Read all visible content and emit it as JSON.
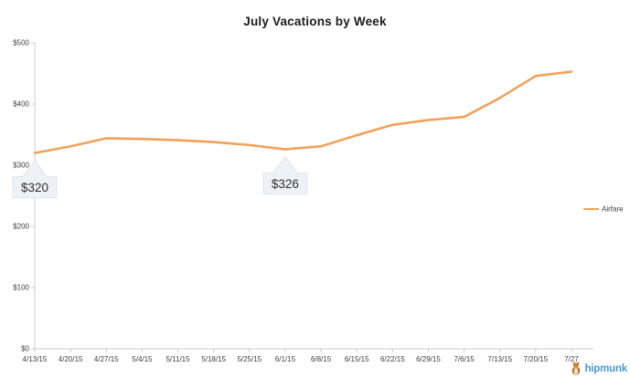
{
  "chart_data": {
    "type": "line",
    "title": "July Vacations by Week",
    "x": [
      "4/13/15",
      "4/20/15",
      "4/27/15",
      "5/4/15",
      "5/11/15",
      "5/18/15",
      "5/25/15",
      "6/1/15",
      "6/8/15",
      "6/15/15",
      "6/22/15",
      "6/29/15",
      "7/6/15",
      "7/13/15",
      "7/20/15",
      "7/27"
    ],
    "series": [
      {
        "name": "Airfare",
        "values": [
          320,
          331,
          344,
          343,
          341,
          338,
          333,
          326,
          331,
          349,
          366,
          374,
          379,
          410,
          446,
          453
        ]
      }
    ],
    "ylim": [
      0,
      500
    ],
    "y_tick_labels": [
      "$0",
      "$100",
      "$200",
      "$300",
      "$400",
      "$500"
    ],
    "grid": false,
    "legend": {
      "position": "right",
      "entries": [
        "Airfare"
      ]
    },
    "annotations": [
      {
        "x": "4/13/15",
        "value": 320,
        "label": "$320"
      },
      {
        "x": "6/1/15",
        "value": 326,
        "label": "$326"
      }
    ]
  },
  "colors": {
    "line": "#f0a25c",
    "axis": "#c9ccd1",
    "tick_text": "#3d3d3d",
    "tooltip_bg": "#edf2f7",
    "tooltip_border": "#dde6ee",
    "tooltip_text": "#2e2e2e",
    "brand_blue": "#4a99d3"
  },
  "branding": {
    "logo_text": "hipmunk"
  }
}
